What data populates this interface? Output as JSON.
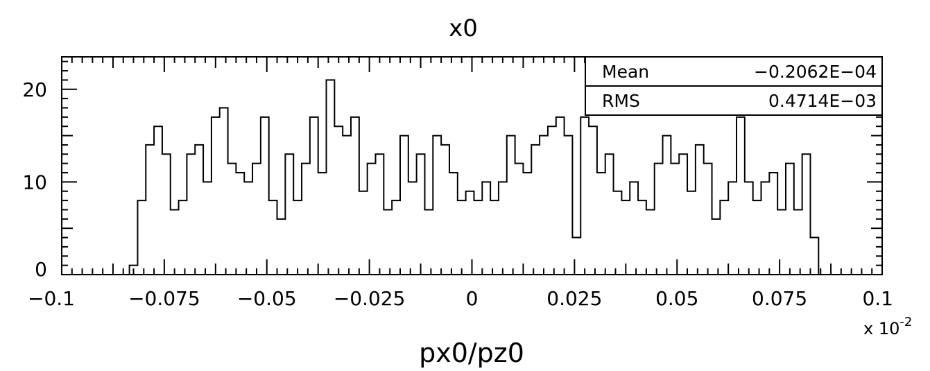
{
  "chart_data": {
    "type": "histogram",
    "title": "x0",
    "xlabel": "px0/pz0",
    "ylabel": "",
    "x_multiplier": "x 10",
    "x_multiplier_exponent": "-2",
    "xlim": [
      -0.1,
      0.1
    ],
    "ylim": [
      0,
      23.5
    ],
    "x_ticks": [
      "-0.1",
      "-0.075",
      "-0.05",
      "-0.025",
      "0",
      "0.025",
      "0.05",
      "0.075",
      "0.1"
    ],
    "x_tick_values": [
      -0.1,
      -0.075,
      -0.05,
      -0.025,
      0,
      0.025,
      0.05,
      0.075,
      0.1
    ],
    "y_ticks": [
      "0",
      "10",
      "20"
    ],
    "y_tick_values": [
      0,
      10,
      20
    ],
    "bin_start": -0.0835,
    "bin_width": 0.002,
    "values": [
      1,
      8,
      14,
      16,
      13,
      7,
      8,
      13,
      14,
      10,
      17,
      18,
      12,
      11,
      10,
      12,
      17,
      8,
      6,
      13,
      8,
      12,
      17,
      11,
      21,
      16,
      15,
      17,
      9,
      12,
      13,
      7,
      8,
      15,
      10,
      13,
      7,
      15,
      14,
      11,
      8,
      9,
      8,
      10,
      8,
      10,
      15,
      12,
      11,
      14,
      15,
      16,
      17,
      15,
      4,
      17,
      16,
      11,
      13,
      9,
      8,
      10,
      8,
      7,
      12,
      15,
      12,
      13,
      9,
      14,
      12,
      6,
      8,
      10,
      17,
      10,
      8,
      10,
      11,
      7,
      12,
      7,
      13,
      4
    ],
    "stats": [
      {
        "name": "Mean",
        "value": "-0.2062E-04"
      },
      {
        "name": "RMS",
        "value": "0.4714E-03"
      }
    ]
  }
}
